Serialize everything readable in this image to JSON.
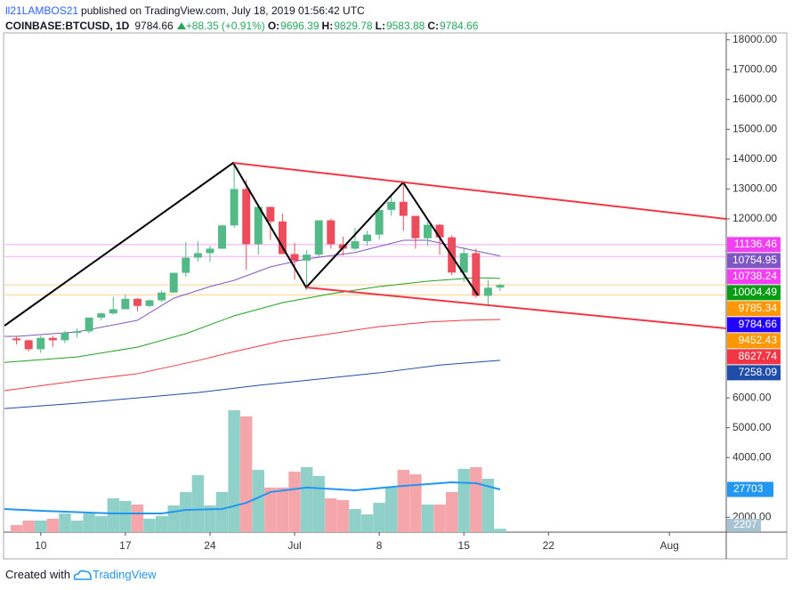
{
  "header": {
    "author": "ll21LAMBOS21",
    "published": "published on TradingView.com, July 18, 2019 01:56:42 UTC",
    "symbol": "COINBASE:BTCUSD, 1D",
    "last": 9784.66,
    "change": "+88.35",
    "change_pct": "(+0.91%)",
    "ohlc": [
      {
        "label": "O:",
        "value": 9696.39
      },
      {
        "label": "H:",
        "value": 9829.78
      },
      {
        "label": "L:",
        "value": 9583.88
      },
      {
        "label": "C:",
        "value": 9784.66
      }
    ]
  },
  "chart_data": {
    "type": "candlestick",
    "xlim": [
      -1,
      58.7
    ],
    "xticks": [
      {
        "value": 2,
        "label": "10"
      },
      {
        "value": 9,
        "label": "17"
      },
      {
        "value": 16,
        "label": "24"
      },
      {
        "value": 23,
        "label": "Jul"
      },
      {
        "value": 30,
        "label": "8"
      },
      {
        "value": 37,
        "label": "15"
      },
      {
        "value": 44,
        "label": "22"
      },
      {
        "value": 54,
        "label": "Aug"
      }
    ],
    "ylim": [
      1500,
      18200
    ],
    "yticks": [
      {
        "value": 18000,
        "label": "18000.00"
      },
      {
        "value": 17000,
        "label": "17000.00"
      },
      {
        "value": 16000,
        "label": "16000.00"
      },
      {
        "value": 15000,
        "label": "15000.00"
      },
      {
        "value": 14000,
        "label": "14000.00"
      },
      {
        "value": 13000,
        "label": "13000.00"
      },
      {
        "value": 12000,
        "label": "12000.00"
      },
      {
        "value": 6000,
        "label": "6000.00"
      },
      {
        "value": 5000,
        "label": "5000.00"
      },
      {
        "value": 4000,
        "label": "4000.00"
      },
      {
        "value": 2000,
        "label": "2000.00"
      }
    ],
    "y2lim": [
      0,
      323000
    ],
    "up_color": "#53b987",
    "down_color": "#eb4d5c",
    "up_volume_color": "#8fd0c9",
    "down_volume_color": "#f5a6ab",
    "open": [
      7990,
      7930,
      7630,
      8010,
      7930,
      8180,
      8230,
      8690,
      8830,
      8970,
      9320,
      9080,
      9270,
      9530,
      10190,
      10700,
      10850,
      11000,
      11780,
      13000,
      11150,
      12400,
      11910,
      10820,
      10600,
      10800,
      11950,
      11150,
      11000,
      11250,
      11470,
      12300,
      12570,
      12100,
      11350,
      11800,
      11380,
      10200,
      10850,
      9420,
      9696.39
    ],
    "high": [
      8070,
      7950,
      8080,
      8070,
      8230,
      8320,
      8690,
      8860,
      9390,
      9470,
      9340,
      9300,
      9600,
      10190,
      11220,
      11250,
      11100,
      11800,
      13880,
      13300,
      12430,
      12410,
      12180,
      11200,
      10950,
      11950,
      12000,
      11400,
      11700,
      11600,
      12350,
      12800,
      13200,
      12100,
      11900,
      11830,
      11450,
      11050,
      11000,
      9950,
      9829.78
    ],
    "low": [
      7790,
      7560,
      7510,
      7710,
      7830,
      8020,
      8170,
      8600,
      8790,
      8970,
      8900,
      9040,
      9220,
      9530,
      10060,
      10570,
      10550,
      10990,
      11700,
      10300,
      10800,
      11300,
      10820,
      9970,
      9620,
      10700,
      11000,
      10770,
      10950,
      11100,
      11300,
      12100,
      11600,
      11000,
      11100,
      10800,
      10120,
      9880,
      9360,
      9080,
      9583.88
    ],
    "close": [
      7930,
      7630,
      8010,
      7930,
      8180,
      8230,
      8690,
      8830,
      8970,
      9320,
      9080,
      9270,
      9530,
      10190,
      10700,
      10850,
      11000,
      11780,
      13000,
      11150,
      12400,
      11910,
      10820,
      10600,
      10800,
      11950,
      11150,
      11000,
      11250,
      11470,
      12300,
      12570,
      12100,
      11350,
      11800,
      11380,
      10200,
      10850,
      9420,
      9690,
      9784.66
    ],
    "volume": {
      "values": [
        4600,
        7500,
        7500,
        8700,
        12100,
        7500,
        12100,
        10400,
        21900,
        20200,
        17900,
        8700,
        10400,
        17300,
        26000,
        36900,
        17300,
        26000,
        79000,
        75000,
        40400,
        28900,
        28900,
        39200,
        42100,
        36400,
        21900,
        20800,
        15000,
        11500,
        19000,
        28900,
        40400,
        37500,
        17900,
        17900,
        26000,
        41000,
        42100,
        34600,
        2207
      ],
      "average": {
        "color": "#2196f3",
        "x": [
          -1,
          2,
          8,
          12,
          14,
          17,
          19,
          21,
          24,
          28,
          32,
          36,
          38,
          40
        ],
        "values": [
          15000,
          13850,
          12100,
          12100,
          14400,
          15000,
          19000,
          26000,
          28900,
          27100,
          30000,
          32300,
          31700,
          27703
        ]
      }
    },
    "moving_averages": [
      {
        "color": "#7e57c2",
        "x": [
          -1,
          0,
          5,
          10,
          13,
          16,
          18,
          21,
          24,
          28,
          32,
          34,
          37,
          40
        ],
        "values": [
          8060,
          8060,
          8210,
          8600,
          9340,
          9730,
          9940,
          10390,
          10660,
          10870,
          11280,
          11280,
          11010,
          10754.95
        ]
      },
      {
        "color": "#21a321",
        "x": [
          -1,
          5,
          10,
          14,
          18,
          22,
          26,
          30,
          34,
          38,
          40
        ],
        "values": [
          7190,
          7370,
          7700,
          8150,
          8750,
          9190,
          9490,
          9730,
          9910,
          10030,
          10004.49
        ]
      },
      {
        "color": "#f23645",
        "x": [
          -1,
          5,
          10,
          15,
          18,
          22,
          26,
          30,
          34,
          37,
          40
        ],
        "values": [
          6240,
          6570,
          6810,
          7250,
          7550,
          7910,
          8150,
          8390,
          8540,
          8600,
          8627.74
        ]
      },
      {
        "color": "#1f4da8",
        "x": [
          -1,
          5,
          10,
          15,
          20,
          25,
          30,
          35,
          40
        ],
        "values": [
          5640,
          5820,
          6000,
          6180,
          6420,
          6630,
          6840,
          7100,
          7258.09
        ]
      }
    ],
    "price_labels": [
      {
        "value": 11136.46,
        "color": "#f23ff2",
        "hline": true
      },
      {
        "value": 10754.95,
        "color": "#7e57c2",
        "hline": false
      },
      {
        "value": 10738.24,
        "color": "#f23ff2",
        "hline": true
      },
      {
        "value": 10004.49,
        "color": "#089c14",
        "hline": false
      },
      {
        "value": 9785.34,
        "color": "#ff9800",
        "hline": true
      },
      {
        "value": 9784.66,
        "color": "#2400ff",
        "hline": false
      },
      {
        "value": 9452.43,
        "color": "#ff9800",
        "hline": true
      },
      {
        "value": 8627.74,
        "color": "#f23645",
        "hline": false
      },
      {
        "value": 7258.09,
        "color": "#1f4da8",
        "hline": false
      }
    ]
  },
  "footer": {
    "created": "Created with",
    "brand": "TradingView"
  }
}
